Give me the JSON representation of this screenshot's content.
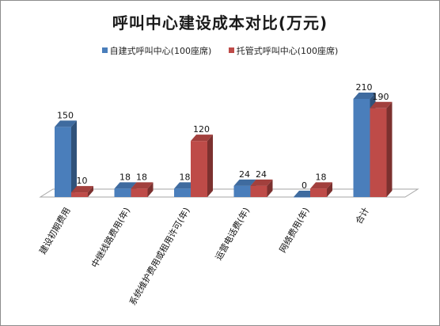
{
  "chart_data": {
    "type": "bar",
    "title": "呼叫中心建设成本对比(万元)",
    "categories": [
      "建设初期费用",
      "中继线路费用(年)",
      "系统维护费用或租用许可(年)",
      "运营电话费(年)",
      "网络费用(年)",
      "合计"
    ],
    "series": [
      {
        "name": "自建式呼叫中心(100座席)",
        "color": "#4a7ebb",
        "values": [
          150,
          18,
          18,
          24,
          0,
          210
        ]
      },
      {
        "name": "托管式呼叫中心(100座席)",
        "color": "#be4b48",
        "values": [
          10,
          18,
          120,
          24,
          18,
          190
        ]
      }
    ],
    "ylim": [
      0,
      210
    ],
    "legend_position": "top",
    "grid": false,
    "view": "3d-column"
  }
}
